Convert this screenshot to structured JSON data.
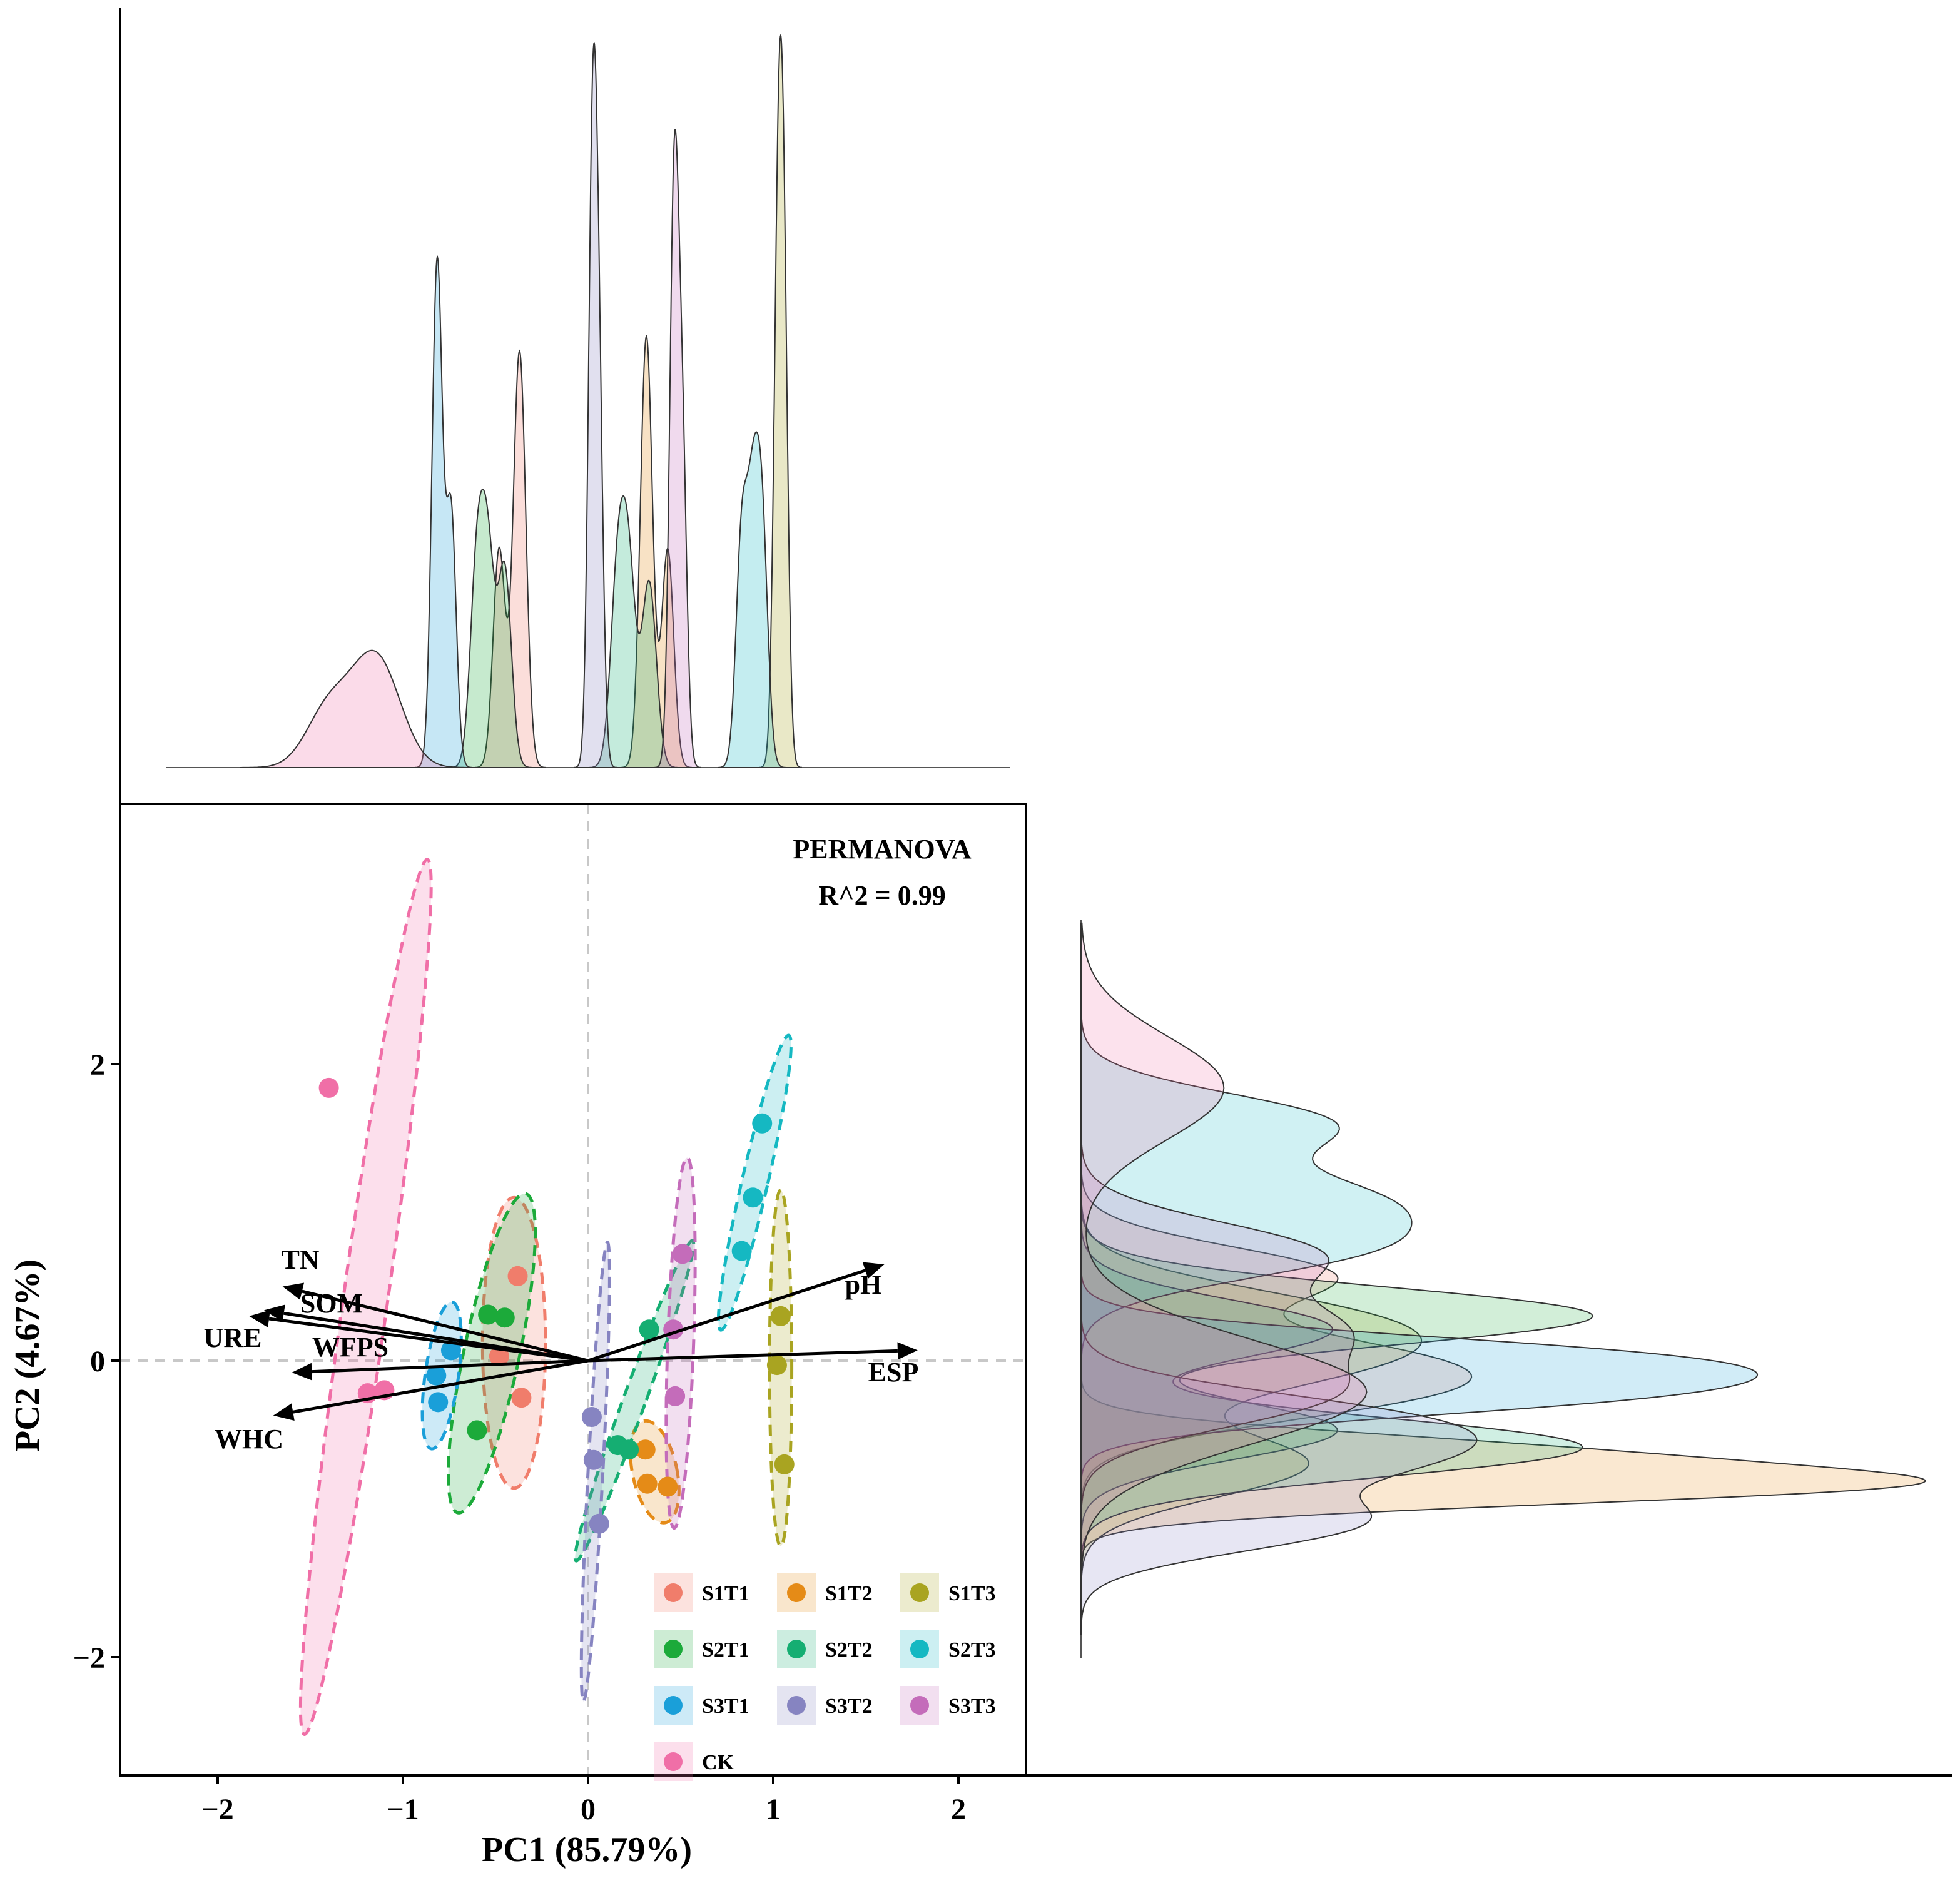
{
  "chart_data": {
    "type": "scatter",
    "subtype": "PCA biplot with 95% confidence ellipses and marginal density plots",
    "xlabel": "PC1 (85.79%)",
    "ylabel": "PC2 (4.67%)",
    "xlim": [
      -2.5,
      2.35
    ],
    "ylim": [
      -2.8,
      3.5
    ],
    "xticks": [
      -2,
      -1,
      0,
      1,
      2
    ],
    "yticks": [
      -2,
      0,
      2
    ],
    "xtick_labels": [
      "−2",
      "−1",
      "0",
      "1",
      "2"
    ],
    "ytick_labels": [
      "−2",
      "0",
      "2"
    ],
    "reference_lines": {
      "x": 0,
      "y": 0,
      "style": "dashed"
    },
    "annotation": {
      "line1": "PERMANOVA",
      "line2": "R^2 = 0.99"
    },
    "legend_position": "bottom-right",
    "series": [
      {
        "name": "S1T1",
        "color": "#F07D6B",
        "points": [
          [
            -0.38,
            0.57
          ],
          [
            -0.48,
            0.03
          ],
          [
            -0.36,
            -0.25
          ]
        ],
        "ellipse": {
          "cx": -0.4,
          "cy": 0.12,
          "rx": 0.17,
          "ry": 0.98,
          "angle": 0
        }
      },
      {
        "name": "S1T2",
        "color": "#E58B17",
        "points": [
          [
            0.31,
            -0.6
          ],
          [
            0.32,
            -0.83
          ],
          [
            0.43,
            -0.85
          ]
        ],
        "ellipse": {
          "cx": 0.36,
          "cy": -0.75,
          "rx": 0.12,
          "ry": 0.35,
          "angle": -12
        }
      },
      {
        "name": "S1T3",
        "color": "#A9A421",
        "points": [
          [
            1.04,
            0.3
          ],
          [
            1.02,
            -0.03
          ],
          [
            1.06,
            -0.7
          ]
        ],
        "ellipse": {
          "cx": 1.04,
          "cy": -0.05,
          "rx": 0.06,
          "ry": 1.2,
          "angle": 0
        }
      },
      {
        "name": "S2T1",
        "color": "#1CAA3A",
        "points": [
          [
            -0.54,
            0.31
          ],
          [
            -0.45,
            0.29
          ],
          [
            -0.6,
            -0.47
          ]
        ],
        "ellipse": {
          "cx": -0.52,
          "cy": 0.05,
          "rx": 0.15,
          "ry": 1.1,
          "angle": 12
        }
      },
      {
        "name": "S2T2",
        "color": "#15AE72",
        "points": [
          [
            0.33,
            0.21
          ],
          [
            0.16,
            -0.57
          ],
          [
            0.22,
            -0.6
          ]
        ],
        "ellipse": {
          "cx": 0.25,
          "cy": -0.27,
          "rx": 0.06,
          "ry": 1.15,
          "angle": 20
        }
      },
      {
        "name": "S2T3",
        "color": "#15B8C2",
        "points": [
          [
            0.94,
            1.6
          ],
          [
            0.89,
            1.1
          ],
          [
            0.83,
            0.74
          ]
        ],
        "ellipse": {
          "cx": 0.9,
          "cy": 1.2,
          "rx": 0.07,
          "ry": 1.02,
          "angle": 13
        }
      },
      {
        "name": "S3T1",
        "color": "#1A9FD9",
        "points": [
          [
            -0.74,
            0.07
          ],
          [
            -0.82,
            -0.1
          ],
          [
            -0.81,
            -0.28
          ]
        ],
        "ellipse": {
          "cx": -0.79,
          "cy": -0.1,
          "rx": 0.09,
          "ry": 0.5,
          "angle": 8
        }
      },
      {
        "name": "S3T2",
        "color": "#8684C1",
        "points": [
          [
            0.02,
            -0.38
          ],
          [
            0.03,
            -0.67
          ],
          [
            0.06,
            -1.1
          ]
        ],
        "ellipse": {
          "cx": 0.04,
          "cy": -0.75,
          "rx": 0.04,
          "ry": 1.55,
          "angle": 3
        }
      },
      {
        "name": "S3T3",
        "color": "#C46CBA",
        "points": [
          [
            0.51,
            0.72
          ],
          [
            0.46,
            0.21
          ],
          [
            0.47,
            -0.24
          ]
        ],
        "ellipse": {
          "cx": 0.5,
          "cy": 0.12,
          "rx": 0.07,
          "ry": 1.25,
          "angle": 2
        }
      },
      {
        "name": "CK",
        "color": "#F06FA7",
        "points": [
          [
            -1.4,
            1.84
          ],
          [
            -1.19,
            -0.22
          ],
          [
            -1.1,
            -0.2
          ]
        ],
        "ellipse": {
          "cx": -1.2,
          "cy": 0.43,
          "rx": 0.12,
          "ry": 2.98,
          "angle": 8
        }
      }
    ],
    "loadings": [
      {
        "label": "TN",
        "x": -1.65,
        "y": 0.5
      },
      {
        "label": "SOM",
        "x": -1.75,
        "y": 0.34
      },
      {
        "label": "URE",
        "x": -1.83,
        "y": 0.3
      },
      {
        "label": "WFPS",
        "x": -1.6,
        "y": -0.08
      },
      {
        "label": "WHC",
        "x": -1.7,
        "y": -0.37
      },
      {
        "label": "pH",
        "x": 1.6,
        "y": 0.65
      },
      {
        "label": "ESP",
        "x": 1.78,
        "y": 0.07
      }
    ]
  }
}
